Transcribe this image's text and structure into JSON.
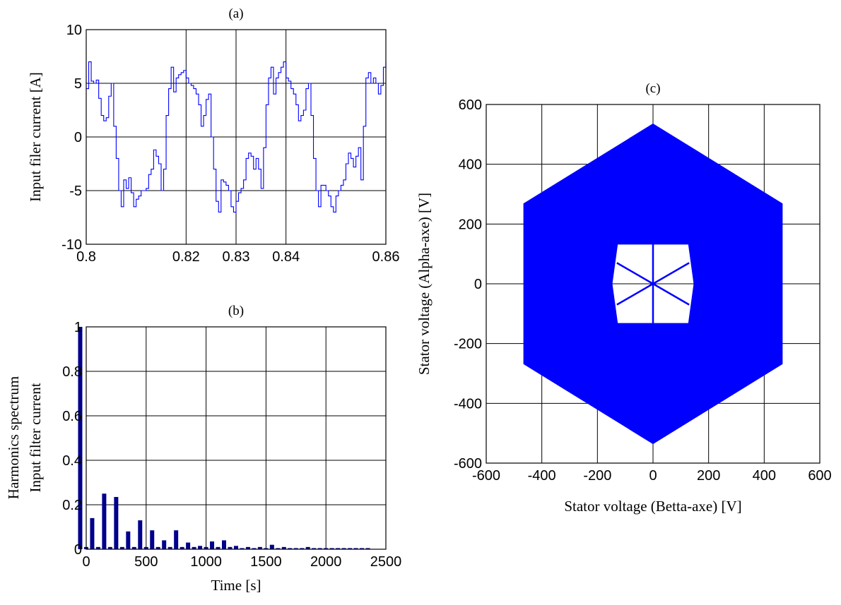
{
  "chart_data": [
    {
      "id": "a",
      "type": "line",
      "title": "(a)",
      "xlabel": "",
      "ylabel": "Input filer current [A]",
      "xlim": [
        0.8,
        0.86
      ],
      "ylim": [
        -10,
        10
      ],
      "xticks": [
        0.8,
        0.82,
        0.83,
        0.84,
        0.86
      ],
      "xtick_labels": [
        "0.8",
        "0.82",
        "0.83",
        "0.84",
        "0.86"
      ],
      "yticks": [
        -10,
        -5,
        0,
        5,
        10
      ],
      "ytick_labels": [
        "-10",
        "-5",
        "0",
        "5",
        "10"
      ],
      "grid": true,
      "color": "#0000ff",
      "series": [
        {
          "x": [
            0.8,
            0.8005,
            0.801,
            0.8015,
            0.802,
            0.8025,
            0.803,
            0.8035,
            0.804,
            0.8045,
            0.805,
            0.8055,
            0.806,
            0.8065,
            0.807,
            0.8075,
            0.808,
            0.8085,
            0.809,
            0.8095,
            0.81,
            0.8105,
            0.811,
            0.8115,
            0.812,
            0.8125,
            0.813,
            0.8135,
            0.814,
            0.8145,
            0.815,
            0.8155,
            0.816,
            0.8165,
            0.817,
            0.8175,
            0.818,
            0.8185,
            0.819,
            0.8195,
            0.82,
            0.8205,
            0.821,
            0.8215,
            0.822,
            0.8225,
            0.823,
            0.8235,
            0.824,
            0.8245,
            0.825,
            0.8255,
            0.826,
            0.8265,
            0.827,
            0.8275,
            0.828,
            0.8285,
            0.829,
            0.8295,
            0.83,
            0.8305,
            0.831,
            0.8315,
            0.832,
            0.8325,
            0.833,
            0.8335,
            0.834,
            0.8345,
            0.835,
            0.8355,
            0.836,
            0.8365,
            0.837,
            0.8375,
            0.838,
            0.8385,
            0.839,
            0.8395,
            0.84,
            0.8405,
            0.841,
            0.8415,
            0.842,
            0.8425,
            0.843,
            0.8435,
            0.844,
            0.8445,
            0.845,
            0.8455,
            0.846,
            0.8465,
            0.847,
            0.8475,
            0.848,
            0.8485,
            0.849,
            0.8495,
            0.85,
            0.8505,
            0.851,
            0.8515,
            0.852,
            0.8525,
            0.853,
            0.8535,
            0.854,
            0.8545,
            0.855,
            0.8555,
            0.856,
            0.8565,
            0.857,
            0.8575,
            0.858,
            0.8585,
            0.859,
            0.8595,
            0.86
          ],
          "y": [
            4.5,
            7.0,
            5.2,
            5.0,
            5.3,
            3.6,
            2.0,
            1.5,
            1.8,
            3.8,
            5.0,
            1.0,
            -2.0,
            -5.0,
            -6.5,
            -4.0,
            -4.8,
            -3.8,
            -5.2,
            -6.5,
            -5.8,
            -5.5,
            -5.0,
            -5.0,
            -4.8,
            -3.5,
            -3.0,
            -1.2,
            -1.8,
            -2.5,
            -5.0,
            -3.0,
            2.0,
            4.5,
            6.5,
            4.2,
            5.5,
            5.8,
            6.0,
            6.2,
            5.5,
            5.0,
            4.8,
            4.5,
            4.0,
            3.0,
            1.0,
            2.0,
            3.5,
            4.0,
            0.0,
            -3.0,
            -6.0,
            -7.0,
            -4.0,
            -4.2,
            -4.5,
            -5.0,
            -6.5,
            -7.0,
            -6.0,
            -5.2,
            -4.8,
            -4.0,
            -2.0,
            -1.5,
            -1.8,
            -3.0,
            -2.0,
            -3.0,
            -4.8,
            -1.0,
            3.0,
            5.5,
            6.5,
            4.0,
            5.5,
            6.0,
            6.5,
            7.0,
            5.5,
            5.2,
            4.5,
            4.0,
            3.0,
            1.5,
            2.0,
            2.5,
            4.5,
            5.0,
            2.0,
            -2.0,
            -5.0,
            -6.5,
            -4.5,
            -4.5,
            -5.0,
            -5.5,
            -6.5,
            -7.0,
            -5.5,
            -5.0,
            -4.5,
            -4.0,
            -2.5,
            -1.5,
            -2.0,
            -2.8,
            -1.8,
            -1.0,
            -4.0,
            1.0,
            5.5,
            6.0,
            5.0,
            5.5,
            5.0,
            4.0,
            4.8,
            6.5,
            7.0
          ]
        }
      ]
    },
    {
      "id": "b",
      "type": "bar",
      "title": "(b)",
      "xlabel": "Time [s]",
      "ylabel": "Harmonics spectrum",
      "ylabel2": "Input filter current",
      "xlim": [
        0,
        2500
      ],
      "ylim": [
        0,
        1
      ],
      "xticks": [
        0,
        500,
        1000,
        1500,
        2000,
        2500
      ],
      "xtick_labels": [
        "0",
        "500",
        "1000",
        "1500",
        "2000",
        "2500"
      ],
      "yticks": [
        0,
        0.2,
        0.4,
        0.6,
        0.8,
        1
      ],
      "ytick_labels": [
        "0",
        "0.2",
        "0.4",
        "0.6",
        "0.8",
        "1"
      ],
      "grid": true,
      "color": "#00008b",
      "x": [
        50,
        100,
        150,
        200,
        250,
        300,
        350,
        400,
        450,
        500,
        550,
        600,
        650,
        700,
        750,
        800,
        850,
        900,
        950,
        1000,
        1050,
        1100,
        1150,
        1200,
        1250,
        1300,
        1350,
        1400,
        1450,
        1500,
        1550,
        1600,
        1650,
        1700,
        1750,
        1800,
        1850,
        1900,
        1950,
        2000,
        2050,
        2100,
        2150,
        2200,
        2250,
        2300,
        2350,
        2400,
        2450
      ],
      "values": [
        1.0,
        0.01,
        0.14,
        0.01,
        0.25,
        0.01,
        0.235,
        0.01,
        0.08,
        0.01,
        0.13,
        0.01,
        0.085,
        0.01,
        0.04,
        0.01,
        0.085,
        0.01,
        0.03,
        0.01,
        0.015,
        0.01,
        0.035,
        0.01,
        0.04,
        0.01,
        0.015,
        0.005,
        0.01,
        0.005,
        0.01,
        0.005,
        0.02,
        0.005,
        0.01,
        0.005,
        0.005,
        0.005,
        0.01,
        0.005,
        0.005,
        0.005,
        0.005,
        0.005,
        0.005,
        0.005,
        0.005,
        0.005,
        0.005
      ]
    },
    {
      "id": "c",
      "type": "area",
      "title": "(c)",
      "xlabel": "Stator voltage (Betta-axe) [V]",
      "ylabel": "Stator voltage (Alpha-axe) [V]",
      "xlim": [
        -600,
        600
      ],
      "ylim": [
        -600,
        600
      ],
      "xticks": [
        -600,
        -400,
        -200,
        0,
        200,
        400,
        600
      ],
      "xtick_labels": [
        "-600",
        "-400",
        "-200",
        "0",
        "200",
        "400",
        "600"
      ],
      "yticks": [
        -600,
        -400,
        -200,
        0,
        200,
        400,
        600
      ],
      "ytick_labels": [
        "-600",
        "-400",
        "-200",
        "0",
        "200",
        "400",
        "600"
      ],
      "grid": true,
      "color": "#0000ff",
      "outer_hexagon": [
        [
          0,
          535
        ],
        [
          465,
          268
        ],
        [
          465,
          -268
        ],
        [
          0,
          -535
        ],
        [
          -465,
          -268
        ],
        [
          -465,
          268
        ]
      ],
      "inner_hexagon": [
        [
          -130,
          135
        ],
        [
          130,
          135
        ],
        [
          150,
          0
        ],
        [
          130,
          -135
        ],
        [
          -130,
          -135
        ],
        [
          -150,
          0
        ]
      ],
      "inner_spokes": [
        [
          [
            -130,
            70
          ],
          [
            130,
            -70
          ]
        ],
        [
          [
            -130,
            -70
          ],
          [
            130,
            70
          ]
        ],
        [
          [
            0,
            135
          ],
          [
            0,
            -135
          ]
        ]
      ]
    }
  ]
}
